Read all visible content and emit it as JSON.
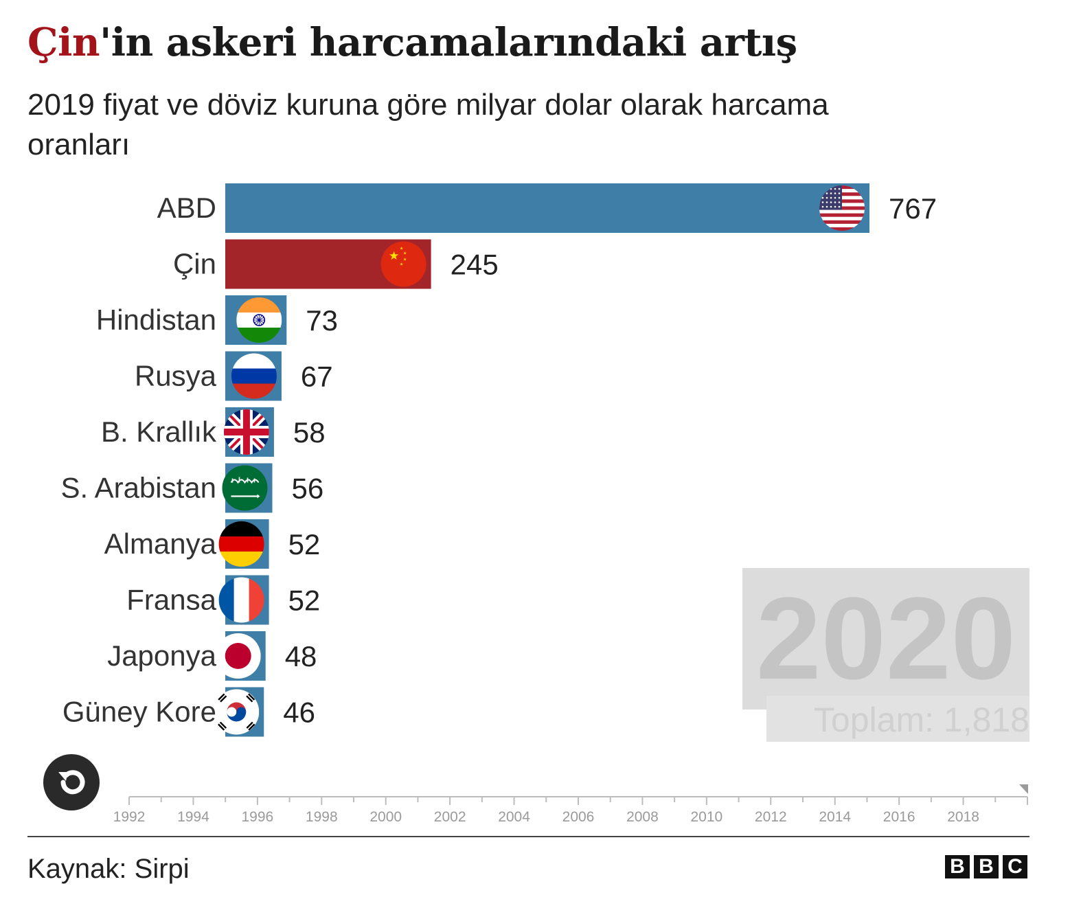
{
  "title": {
    "accent": "Çin",
    "rest": "'in askeri harcamalarındaki artış"
  },
  "subtitle": "2019 fiyat ve döviz kuruna göre milyar dolar olarak harcama oranları",
  "chart_data": {
    "type": "bar",
    "orientation": "horizontal",
    "categories": [
      "ABD",
      "Çin",
      "Hindistan",
      "Rusya",
      "B. Krallık",
      "S. Arabistan",
      "Almanya",
      "Fransa",
      "Japonya",
      "Güney Kore"
    ],
    "values": [
      767,
      245,
      73,
      67,
      58,
      56,
      52,
      52,
      48,
      46
    ],
    "bar_colors": [
      "#3f7ea6",
      "#a3252a",
      "#3f7ea6",
      "#3f7ea6",
      "#3f7ea6",
      "#3f7ea6",
      "#3f7ea6",
      "#3f7ea6",
      "#3f7ea6",
      "#3f7ea6"
    ],
    "flag_icons": [
      "us-flag-icon",
      "china-flag-icon",
      "india-flag-icon",
      "russia-flag-icon",
      "uk-flag-icon",
      "saudi-arabia-flag-icon",
      "germany-flag-icon",
      "france-flag-icon",
      "japan-flag-icon",
      "south-korea-flag-icon"
    ],
    "current_year": "2020",
    "total_label": "Toplam: 1,818",
    "timeline": {
      "start": 1992,
      "end": 2020,
      "tick_labels": [
        "1992",
        "1994",
        "1996",
        "1998",
        "2000",
        "2002",
        "2004",
        "2006",
        "2008",
        "2010",
        "2012",
        "2014",
        "2016",
        "2018"
      ],
      "current": 2020
    }
  },
  "controls": {
    "replay_icon": "replay-icon"
  },
  "footer": {
    "source": "Kaynak: Sirpi",
    "logo_letters": [
      "B",
      "B",
      "C"
    ]
  }
}
